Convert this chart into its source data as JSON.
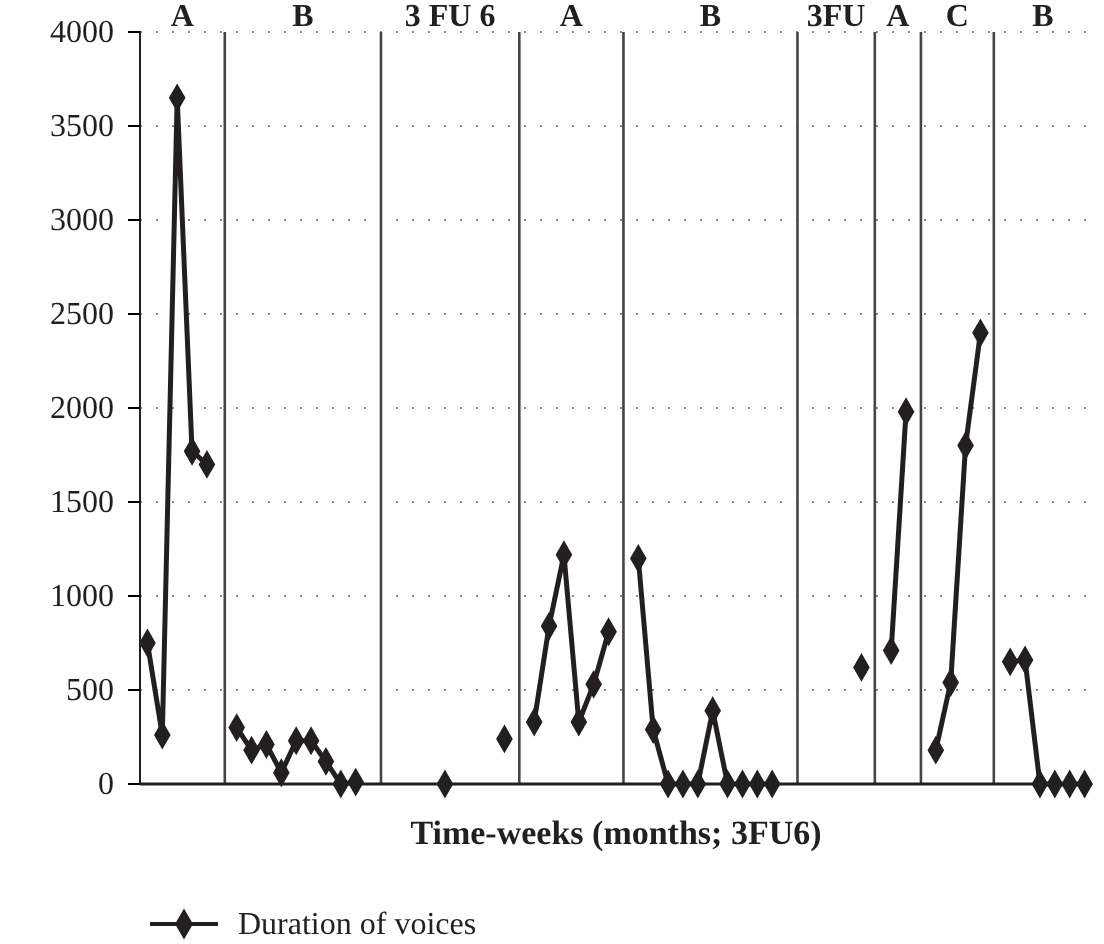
{
  "chart_data": {
    "type": "line",
    "xlabel": "Time-weeks (months; 3FU6)",
    "categories": [
      null,
      null,
      null,
      null,
      null,
      null,
      null,
      null,
      null,
      null,
      null,
      null,
      null,
      null,
      null,
      null,
      null,
      null,
      null,
      null,
      null,
      null,
      null,
      null,
      null,
      null,
      null,
      null,
      null,
      null,
      null,
      null,
      null,
      null,
      null,
      null,
      null,
      null,
      null,
      null,
      null,
      null,
      null,
      null,
      null,
      null,
      null,
      null,
      null,
      null,
      null,
      null,
      null,
      null,
      null,
      null,
      null,
      null,
      null,
      null,
      null,
      null,
      null,
      null
    ],
    "series": [
      {
        "name": "Duration of voices",
        "color": "#231f20",
        "values": [
          750,
          260,
          3650,
          1770,
          1700,
          null,
          300,
          180,
          210,
          60,
          230,
          230,
          120,
          0,
          10,
          null,
          null,
          null,
          null,
          null,
          0,
          null,
          null,
          null,
          240,
          null,
          330,
          840,
          1220,
          330,
          530,
          810,
          null,
          1200,
          290,
          0,
          0,
          0,
          390,
          0,
          0,
          0,
          0,
          null,
          null,
          null,
          null,
          null,
          620,
          null,
          710,
          1980,
          null,
          180,
          540,
          1800,
          2400,
          null,
          650,
          660,
          0,
          0,
          0,
          0
        ]
      }
    ],
    "ylim": [
      0,
      4000
    ],
    "yticks": [
      0,
      500,
      1000,
      1500,
      2000,
      2500,
      3000,
      3500,
      4000
    ],
    "tick_labels": "y",
    "grid": true,
    "marker": "diamond",
    "line_style": "solid",
    "legend": "bottom left",
    "annotations": [
      "A",
      "B",
      "3 FU 6",
      "A",
      "B",
      "3FU",
      "A",
      "C",
      "B"
    ]
  }
}
